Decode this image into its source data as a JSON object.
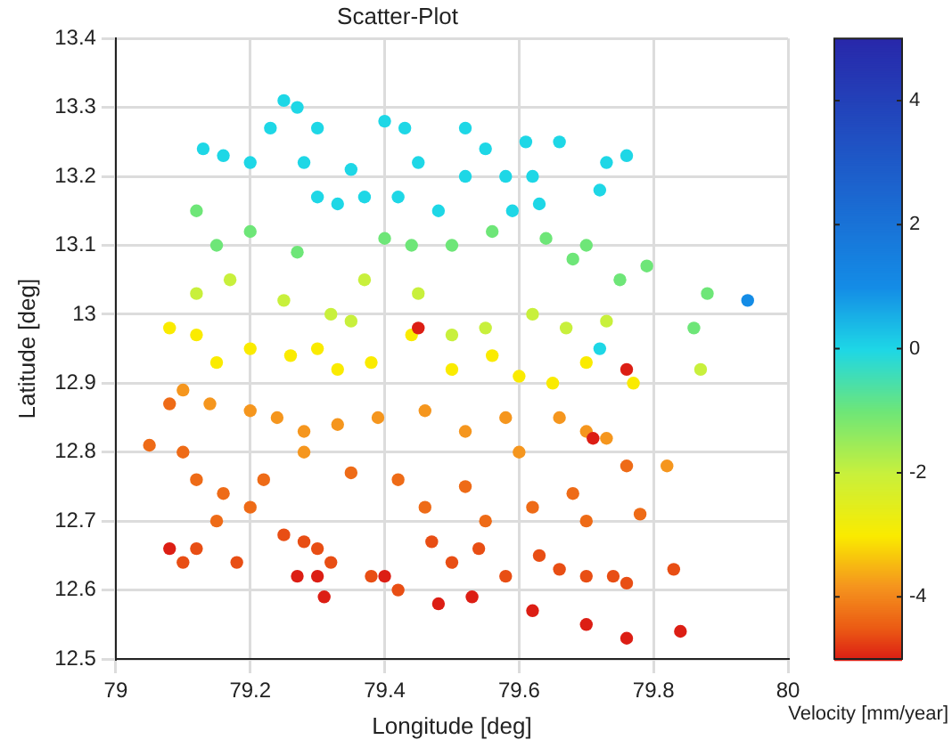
{
  "chart_data": {
    "type": "scatter",
    "title": "Scatter-Plot",
    "xlabel": "Longitude [deg]",
    "ylabel": "Latitude [deg]",
    "clabel": "Velocity [mm/year]",
    "xlim": [
      79,
      80
    ],
    "xticks": [
      79,
      79.2,
      79.4,
      79.6,
      79.8,
      80
    ],
    "ylim": [
      12.5,
      13.4
    ],
    "yticks": [
      12.5,
      12.6,
      12.7,
      12.8,
      12.9,
      13,
      13.1,
      13.2,
      13.3,
      13.4
    ],
    "clim": [
      -5,
      5
    ],
    "cticks": [
      -4,
      -2,
      0,
      2,
      4
    ],
    "grid": true,
    "marker": "circle",
    "x": [
      79.25,
      79.27,
      79.23,
      79.3,
      79.4,
      79.43,
      79.52,
      79.55,
      79.61,
      79.66,
      79.13,
      79.16,
      79.2,
      79.28,
      79.35,
      79.45,
      79.52,
      79.58,
      79.62,
      79.3,
      79.33,
      79.37,
      79.42,
      79.48,
      79.59,
      79.63,
      79.73,
      79.76,
      79.72,
      79.12,
      79.15,
      79.2,
      79.27,
      79.4,
      79.44,
      79.5,
      79.56,
      79.64,
      79.68,
      79.7,
      79.75,
      79.79,
      79.88,
      79.94,
      79.86,
      79.12,
      79.17,
      79.25,
      79.32,
      79.37,
      79.45,
      79.5,
      79.55,
      79.62,
      79.67,
      79.73,
      79.87,
      79.72,
      79.35,
      79.08,
      79.12,
      79.15,
      79.2,
      79.26,
      79.3,
      79.33,
      79.38,
      79.44,
      79.5,
      79.56,
      79.6,
      79.65,
      79.7,
      79.77,
      79.1,
      79.14,
      79.2,
      79.24,
      79.28,
      79.33,
      79.39,
      79.46,
      79.52,
      79.58,
      79.66,
      79.7,
      79.73,
      79.82,
      79.6,
      79.28,
      79.45,
      79.76,
      79.71,
      79.08,
      79.1,
      79.12,
      79.16,
      79.2,
      79.22,
      79.35,
      79.42,
      79.46,
      79.52,
      79.55,
      79.62,
      79.68,
      79.7,
      79.76,
      79.78,
      79.05,
      79.15,
      79.12,
      79.18,
      79.25,
      79.28,
      79.3,
      79.32,
      79.38,
      79.42,
      79.47,
      79.5,
      79.54,
      79.58,
      79.63,
      79.66,
      79.7,
      79.74,
      79.76,
      79.83,
      79.1,
      79.08,
      79.27,
      79.31,
      79.4,
      79.48,
      79.53,
      79.62,
      79.7,
      79.76,
      79.84,
      79.3
    ],
    "values": [
      13.31,
      13.3,
      13.27,
      13.27,
      13.28,
      13.27,
      13.27,
      13.24,
      13.25,
      13.25,
      13.24,
      13.23,
      13.22,
      13.22,
      13.21,
      13.22,
      13.2,
      13.2,
      13.2,
      13.17,
      13.16,
      13.17,
      13.17,
      13.15,
      13.15,
      13.16,
      13.22,
      13.23,
      13.18,
      13.15,
      13.1,
      13.12,
      13.09,
      13.11,
      13.1,
      13.1,
      13.12,
      13.11,
      13.08,
      13.1,
      13.05,
      13.07,
      13.03,
      13.02,
      12.98,
      13.03,
      13.05,
      13.02,
      13.0,
      13.05,
      13.03,
      12.97,
      12.98,
      13.0,
      12.98,
      12.99,
      12.92,
      12.95,
      12.99,
      12.98,
      12.97,
      12.93,
      12.95,
      12.94,
      12.95,
      12.92,
      12.93,
      12.97,
      12.92,
      12.94,
      12.91,
      12.9,
      12.93,
      12.9,
      12.89,
      12.87,
      12.86,
      12.85,
      12.83,
      12.84,
      12.85,
      12.86,
      12.83,
      12.85,
      12.85,
      12.83,
      12.82,
      12.78,
      12.8,
      12.8,
      12.98,
      12.92,
      12.82,
      12.87,
      12.8,
      12.76,
      12.74,
      12.72,
      12.76,
      12.77,
      12.76,
      12.72,
      12.75,
      12.7,
      12.72,
      12.74,
      12.7,
      12.78,
      12.71,
      12.81,
      12.7,
      12.66,
      12.64,
      12.68,
      12.67,
      12.66,
      12.64,
      12.62,
      12.6,
      12.67,
      12.64,
      12.66,
      12.62,
      12.65,
      12.63,
      12.62,
      12.62,
      12.61,
      12.63,
      12.64,
      12.66,
      12.62,
      12.59,
      12.62,
      12.58,
      12.59,
      12.57,
      12.55,
      12.53,
      12.54,
      12.62
    ],
    "cvalues": [
      0,
      0,
      0,
      0,
      0,
      0,
      0,
      0,
      0,
      0,
      0,
      0,
      0,
      0,
      0,
      0,
      0,
      0,
      0,
      0,
      0,
      0,
      0,
      0,
      0,
      0,
      0,
      0,
      0,
      -1,
      -1,
      -1,
      -1,
      -1,
      -1,
      -1,
      -1,
      -1,
      -1,
      -1,
      -1,
      -1,
      -1,
      1,
      -1,
      -2,
      -2,
      -2,
      -2,
      -2,
      -2,
      -2,
      -2,
      -2,
      -2,
      -2,
      -2,
      0,
      -2,
      -3,
      -3,
      -3,
      -3,
      -3,
      -3,
      -3,
      -3,
      -3,
      -3,
      -3,
      -3,
      -3,
      -3,
      -3,
      -3.8,
      -3.8,
      -3.8,
      -3.8,
      -3.8,
      -3.8,
      -3.8,
      -3.8,
      -3.8,
      -3.8,
      -3.8,
      -3.8,
      -3.8,
      -3.8,
      -3.8,
      -3.8,
      -5,
      -5,
      -5,
      -4.3,
      -4.3,
      -4.3,
      -4.3,
      -4.3,
      -4.3,
      -4.3,
      -4.3,
      -4.3,
      -4.3,
      -4.3,
      -4.3,
      -4.3,
      -4.3,
      -4.3,
      -4.3,
      -4.3,
      -4.3,
      -4.6,
      -4.6,
      -4.6,
      -4.6,
      -4.6,
      -4.6,
      -4.6,
      -4.6,
      -4.6,
      -4.6,
      -4.6,
      -4.6,
      -4.6,
      -4.6,
      -4.6,
      -4.6,
      -4.6,
      -4.6,
      -4.6,
      -5,
      -5,
      -5,
      -5,
      -5,
      -5,
      -5,
      -5,
      -5,
      -5,
      -5
    ]
  }
}
